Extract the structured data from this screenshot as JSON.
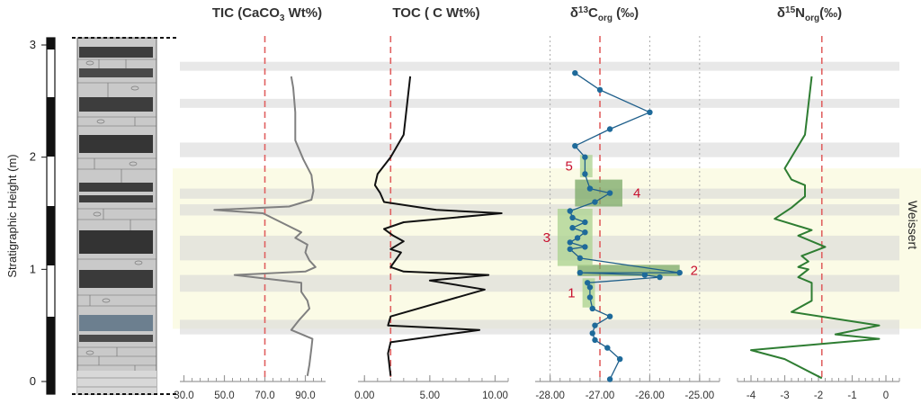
{
  "figure": {
    "y_axis": {
      "label": "Stratigraphic Height (m)",
      "ticks": [
        "0",
        "1",
        "2",
        "3"
      ],
      "ylim": [
        0,
        3.05
      ]
    },
    "event_label": "Weissert",
    "event_interval": [
      0.47,
      1.9
    ],
    "grey_bands": [
      [
        0.42,
        0.55
      ],
      [
        0.8,
        0.95
      ],
      [
        1.08,
        1.3
      ],
      [
        1.48,
        1.58
      ],
      [
        1.63,
        1.72
      ],
      [
        2.0,
        2.13
      ],
      [
        2.44,
        2.52
      ],
      [
        2.77,
        2.85
      ]
    ]
  },
  "chart_data": [
    {
      "type": "line",
      "panel": "tic",
      "title_main": "TIC (CaCO",
      "title_sub": "3",
      "title_tail": " Wt%)",
      "ticks": [
        "30.0",
        "50.0",
        "70.0",
        "90.0"
      ],
      "tick_values": [
        30,
        50,
        70,
        90
      ],
      "xlim": [
        28,
        100
      ],
      "reference": 70,
      "color": "#808080",
      "points": [
        [
          91,
          0.05
        ],
        [
          92,
          0.15
        ],
        [
          93,
          0.3
        ],
        [
          93.5,
          0.38
        ],
        [
          83,
          0.46
        ],
        [
          87,
          0.55
        ],
        [
          92,
          0.65
        ],
        [
          91,
          0.72
        ],
        [
          88,
          0.8
        ],
        [
          88,
          0.88
        ],
        [
          55,
          0.95
        ],
        [
          90,
          0.98
        ],
        [
          95,
          1.02
        ],
        [
          92,
          1.08
        ],
        [
          90,
          1.15
        ],
        [
          91,
          1.22
        ],
        [
          85,
          1.28
        ],
        [
          88,
          1.33
        ],
        [
          69,
          1.5
        ],
        [
          45,
          1.53
        ],
        [
          82,
          1.56
        ],
        [
          93,
          1.62
        ],
        [
          94,
          1.7
        ],
        [
          93,
          1.84
        ],
        [
          89,
          1.98
        ],
        [
          85,
          2.15
        ],
        [
          85,
          2.4
        ],
        [
          84,
          2.62
        ],
        [
          83,
          2.72
        ]
      ]
    },
    {
      "type": "line",
      "panel": "toc",
      "title_main": "TOC ( C Wt%)",
      "ticks": [
        "0.00",
        "5.00",
        "10.00"
      ],
      "tick_values": [
        0,
        5,
        10
      ],
      "xlim": [
        -0.5,
        11
      ],
      "reference": 2.0,
      "color": "#111111",
      "points": [
        [
          2,
          0.05
        ],
        [
          1.8,
          0.25
        ],
        [
          2,
          0.35
        ],
        [
          8.8,
          0.46
        ],
        [
          1.8,
          0.5
        ],
        [
          2,
          0.58
        ],
        [
          9.2,
          0.82
        ],
        [
          5,
          0.9
        ],
        [
          9.5,
          0.95
        ],
        [
          3,
          0.98
        ],
        [
          2,
          1.02
        ],
        [
          2.8,
          1.15
        ],
        [
          2,
          1.18
        ],
        [
          3,
          1.25
        ],
        [
          2.2,
          1.3
        ],
        [
          1.5,
          1.36
        ],
        [
          3,
          1.42
        ],
        [
          10.5,
          1.5
        ],
        [
          5.5,
          1.53
        ],
        [
          1.5,
          1.6
        ],
        [
          1.2,
          1.68
        ],
        [
          0.8,
          1.75
        ],
        [
          1,
          1.85
        ],
        [
          2,
          2.0
        ],
        [
          3,
          2.2
        ],
        [
          3.5,
          2.72
        ]
      ]
    },
    {
      "type": "line",
      "panel": "d13c",
      "title_delta": "δ",
      "title_sup": "13",
      "title_mid": "C",
      "title_sub": "org",
      "title_tail": " (‰)",
      "ticks": [
        "-28.00",
        "-27.00",
        "-26.00",
        "-25.00"
      ],
      "tick_values": [
        -28,
        -27,
        -26,
        -25
      ],
      "xlim": [
        -28.3,
        -24.6
      ],
      "reference": -27.0,
      "gridlines": [
        -28,
        -26,
        -25
      ],
      "color": "#1f5f8b",
      "marker_color": "#1e6a9a",
      "points": [
        [
          -26.8,
          0.02
        ],
        [
          -26.6,
          0.2
        ],
        [
          -26.85,
          0.3
        ],
        [
          -27.1,
          0.37
        ],
        [
          -27.15,
          0.43
        ],
        [
          -27.1,
          0.5
        ],
        [
          -26.8,
          0.58
        ],
        [
          -27.15,
          0.65
        ],
        [
          -27.2,
          0.75
        ],
        [
          -27.2,
          0.84
        ],
        [
          -27.25,
          0.88
        ],
        [
          -25.8,
          0.93
        ],
        [
          -26.1,
          0.95
        ],
        [
          -27.4,
          0.97
        ],
        [
          -25.4,
          0.97
        ],
        [
          -27.4,
          1.1
        ],
        [
          -27.6,
          1.18
        ],
        [
          -27.3,
          1.2
        ],
        [
          -27.6,
          1.24
        ],
        [
          -27.45,
          1.28
        ],
        [
          -27.3,
          1.33
        ],
        [
          -27.55,
          1.37
        ],
        [
          -27.3,
          1.42
        ],
        [
          -27.55,
          1.46
        ],
        [
          -27.6,
          1.52
        ],
        [
          -27.1,
          1.6
        ],
        [
          -26.8,
          1.68
        ],
        [
          -27.2,
          1.72
        ],
        [
          -27.3,
          1.85
        ],
        [
          -27.3,
          2.0
        ],
        [
          -27.5,
          2.1
        ],
        [
          -26.8,
          2.25
        ],
        [
          -26.0,
          2.4
        ],
        [
          -27.0,
          2.6
        ],
        [
          -27.5,
          2.75
        ]
      ],
      "boxes": [
        {
          "label": "1",
          "x": [
            -27.35,
            -27.1
          ],
          "y": [
            0.66,
            0.92
          ]
        },
        {
          "label": "2",
          "x": [
            -27.45,
            -25.4
          ],
          "y": [
            0.94,
            1.04
          ]
        },
        {
          "label": "3",
          "x": [
            -27.85,
            -27.15
          ],
          "y": [
            1.03,
            1.54
          ]
        },
        {
          "label": "4",
          "x": [
            -27.5,
            -26.55
          ],
          "y": [
            1.56,
            1.8
          ]
        },
        {
          "label": "5",
          "x": [
            -27.4,
            -27.15
          ],
          "y": [
            1.82,
            2.02
          ]
        }
      ]
    },
    {
      "type": "line",
      "panel": "d15n",
      "title_delta": "δ",
      "title_sup": "15",
      "title_mid": "N",
      "title_sub": "org",
      "title_tail": "(‰)",
      "ticks": [
        "-4",
        "-3",
        "-2",
        "-1",
        "0"
      ],
      "tick_values": [
        -4,
        -3,
        -2,
        -1,
        0
      ],
      "xlim": [
        -4.4,
        0.4
      ],
      "reference": -1.9,
      "color": "#2e7d32",
      "points": [
        [
          -1.9,
          0.03
        ],
        [
          -3,
          0.2
        ],
        [
          -4,
          0.28
        ],
        [
          -0.2,
          0.38
        ],
        [
          -1.5,
          0.42
        ],
        [
          -0.2,
          0.5
        ],
        [
          -2.8,
          0.62
        ],
        [
          -2.2,
          0.72
        ],
        [
          -2.2,
          0.88
        ],
        [
          -2.6,
          0.93
        ],
        [
          -2.3,
          1.0
        ],
        [
          -2.6,
          1.02
        ],
        [
          -2.3,
          1.07
        ],
        [
          -2.5,
          1.12
        ],
        [
          -1.8,
          1.2
        ],
        [
          -2.6,
          1.3
        ],
        [
          -2.2,
          1.35
        ],
        [
          -3.3,
          1.45
        ],
        [
          -2.8,
          1.55
        ],
        [
          -2.4,
          1.65
        ],
        [
          -2.4,
          1.75
        ],
        [
          -2.8,
          1.8
        ],
        [
          -3,
          1.9
        ],
        [
          -2.4,
          2.2
        ],
        [
          -2.2,
          2.72
        ]
      ]
    }
  ]
}
